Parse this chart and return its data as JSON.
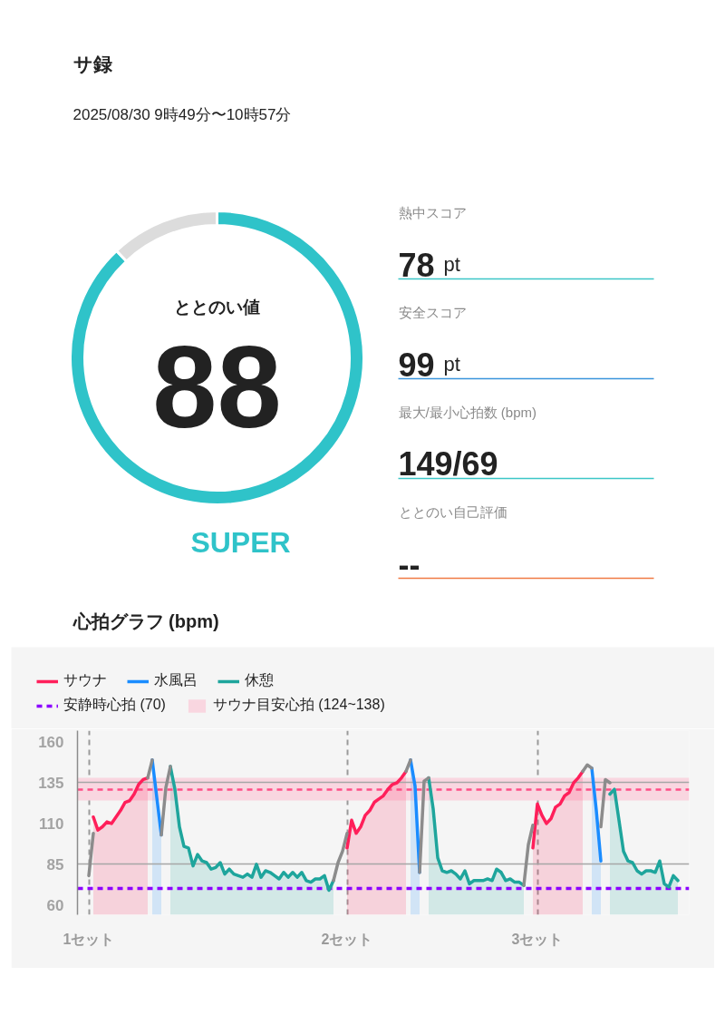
{
  "chart_data": [
    {
      "type": "donut",
      "title": "サ録",
      "subtitle": "2025/08/30 9時49分〜10時57分",
      "categories": [
        "ととのい値",
        null
      ],
      "values": [
        88,
        12
      ],
      "colors": [
        "#2fc3c9",
        "#dcdcdc"
      ],
      "value_labels": [
        "88",
        null
      ],
      "annotations": [
        "SUPER"
      ]
    },
    {
      "type": "other",
      "annotations": [
        "熱中スコア",
        "78 pt",
        "安全スコア",
        "99 pt",
        "最大/最小心拍数 (bpm)",
        "149/69",
        "ととのい自己評価",
        "--"
      ],
      "colors": [
        "#3cc6c8",
        "#3a95dc",
        "#3cc6c8",
        "#f07a45"
      ]
    },
    {
      "type": "area",
      "title": "心拍グラフ (bpm)",
      "categories": [
        null,
        null,
        "1セット",
        null,
        null,
        null,
        null,
        null,
        null,
        null,
        null,
        null,
        null,
        null,
        null,
        null,
        null,
        null,
        null,
        null,
        null,
        null,
        null,
        null,
        null,
        null,
        null,
        null,
        null,
        null,
        null,
        null,
        null,
        null,
        null,
        null,
        null,
        null,
        null,
        null,
        null,
        null,
        null,
        null,
        null,
        null,
        null,
        null,
        null,
        null,
        null,
        null,
        null,
        null,
        null,
        null,
        null,
        null,
        null,
        "2セット",
        null,
        null,
        null,
        null,
        null,
        null,
        null,
        null,
        null,
        null,
        null,
        null,
        null,
        null,
        null,
        null,
        null,
        null,
        null,
        null,
        null,
        null,
        null,
        null,
        null,
        null,
        null,
        null,
        null,
        null,
        null,
        null,
        null,
        null,
        null,
        null,
        null,
        null,
        null,
        null,
        null,
        "3セット",
        null,
        null,
        null,
        null,
        null,
        null,
        null,
        null,
        null,
        null,
        null,
        null,
        null,
        null,
        null,
        null,
        null,
        null,
        null,
        null,
        null,
        null,
        null,
        null,
        null,
        null,
        null,
        null,
        null,
        null,
        null,
        null,
        null
      ],
      "series": [
        {
          "name": "サウナ",
          "color": "#ff1f5a",
          "type": "area",
          "values": [
            null,
            null,
            null,
            114,
            106,
            108,
            111,
            110,
            114,
            118,
            123,
            124,
            128,
            134,
            137,
            138,
            null,
            null,
            null,
            null,
            null,
            null,
            null,
            null,
            null,
            null,
            null,
            null,
            null,
            null,
            null,
            null,
            null,
            null,
            null,
            null,
            null,
            null,
            null,
            null,
            null,
            null,
            null,
            null,
            null,
            null,
            null,
            null,
            null,
            null,
            null,
            null,
            null,
            null,
            null,
            null,
            null,
            null,
            null,
            95,
            112,
            104,
            108,
            115,
            118,
            123,
            125,
            127,
            131,
            134,
            135,
            138,
            142,
            null,
            null,
            null,
            null,
            null,
            null,
            null,
            null,
            null,
            null,
            null,
            null,
            null,
            null,
            null,
            null,
            null,
            null,
            null,
            null,
            null,
            null,
            null,
            null,
            null,
            null,
            null,
            95,
            122,
            115,
            110,
            113,
            120,
            122,
            127,
            129,
            135,
            138,
            142,
            null,
            null,
            null,
            null,
            null,
            null,
            null,
            null,
            null,
            null,
            null,
            null,
            null,
            null,
            null,
            null,
            null,
            null,
            null,
            null,
            null,
            null,
            null
          ]
        },
        {
          "name": "水風呂",
          "color": "#1a8cff",
          "type": "area",
          "values": [
            null,
            null,
            null,
            null,
            null,
            null,
            null,
            null,
            null,
            null,
            null,
            null,
            null,
            null,
            null,
            null,
            149,
            126,
            103,
            null,
            null,
            null,
            null,
            null,
            null,
            null,
            null,
            null,
            null,
            null,
            null,
            null,
            null,
            null,
            null,
            null,
            null,
            null,
            null,
            null,
            null,
            null,
            null,
            null,
            null,
            null,
            null,
            null,
            null,
            null,
            null,
            null,
            null,
            null,
            null,
            null,
            null,
            null,
            null,
            null,
            null,
            null,
            null,
            null,
            null,
            null,
            null,
            null,
            null,
            null,
            null,
            null,
            null,
            149,
            133,
            80,
            null,
            null,
            null,
            null,
            null,
            null,
            null,
            null,
            null,
            null,
            null,
            null,
            null,
            null,
            null,
            null,
            null,
            null,
            null,
            null,
            null,
            null,
            null,
            null,
            null,
            null,
            null,
            null,
            null,
            null,
            null,
            null,
            null,
            null,
            null,
            null,
            null,
            144,
            118,
            87,
            null,
            null,
            null,
            null,
            null,
            null,
            null,
            null,
            null,
            null,
            null,
            null,
            null,
            null,
            null,
            null,
            null,
            null,
            null
          ]
        },
        {
          "name": "休憩",
          "color": "#1ea59c",
          "type": "area",
          "values": [
            null,
            null,
            null,
            null,
            null,
            null,
            null,
            null,
            null,
            null,
            null,
            null,
            null,
            null,
            null,
            null,
            null,
            null,
            null,
            null,
            145,
            131,
            108,
            96,
            95,
            84,
            91,
            87,
            86,
            82,
            83,
            86,
            79,
            82,
            79,
            78,
            77,
            79,
            77,
            85,
            77,
            81,
            80,
            78,
            76,
            80,
            77,
            80,
            77,
            80,
            75,
            74,
            76,
            76,
            78,
            69,
            75,
            null,
            null,
            null,
            null,
            null,
            null,
            null,
            null,
            null,
            null,
            null,
            null,
            null,
            null,
            null,
            null,
            null,
            null,
            null,
            null,
            138,
            119,
            89,
            81,
            80,
            81,
            79,
            76,
            81,
            73,
            75,
            75,
            75,
            76,
            75,
            82,
            80,
            75,
            76,
            74,
            74,
            72,
            null,
            null,
            null,
            null,
            null,
            null,
            null,
            null,
            null,
            null,
            null,
            null,
            null,
            null,
            null,
            null,
            null,
            null,
            128,
            131,
            112,
            93,
            87,
            86,
            81,
            79,
            81,
            81,
            80,
            87,
            73,
            71,
            78,
            75,
            null,
            null
          ]
        },
        {
          "color": "#8c8c8c",
          "type": "line",
          "values": [
            null,
            null,
            78,
            104,
            null,
            null,
            null,
            null,
            null,
            null,
            null,
            null,
            null,
            null,
            null,
            138,
            149,
            null,
            null,
            null,
            null,
            null,
            null,
            null,
            null,
            null,
            null,
            null,
            null,
            null,
            null,
            null,
            null,
            null,
            null,
            null,
            null,
            null,
            null,
            null,
            null,
            null,
            null,
            null,
            null,
            null,
            null,
            null,
            null,
            null,
            null,
            null,
            null,
            null,
            null,
            null,
            75,
            86,
            93,
            104,
            null,
            null,
            null,
            null,
            null,
            null,
            null,
            null,
            null,
            null,
            null,
            null,
            142,
            149,
            null,
            null,
            null,
            null,
            null,
            null,
            null,
            null,
            null,
            null,
            null,
            null,
            null,
            null,
            null,
            null,
            null,
            null,
            null,
            null,
            null,
            null,
            null,
            null,
            72,
            97,
            109,
            null,
            null,
            null,
            null,
            null,
            null,
            null,
            null,
            null,
            null,
            142,
            146,
            144,
            null,
            null,
            null,
            null,
            null,
            null,
            null,
            null,
            null,
            null,
            null,
            null,
            null,
            null,
            null,
            null,
            null,
            null,
            null,
            null,
            null
          ]
        },
        {
          "color": "#8c8c8c",
          "type": "line",
          "values": [
            null,
            null,
            null,
            null,
            null,
            null,
            null,
            null,
            null,
            null,
            null,
            null,
            null,
            null,
            null,
            null,
            null,
            null,
            103,
            132,
            145,
            null,
            null,
            null,
            null,
            null,
            null,
            null,
            null,
            null,
            null,
            null,
            null,
            null,
            null,
            null,
            null,
            null,
            null,
            null,
            null,
            null,
            null,
            null,
            null,
            null,
            null,
            null,
            null,
            null,
            null,
            null,
            null,
            null,
            null,
            null,
            null,
            null,
            null,
            null,
            null,
            null,
            null,
            null,
            null,
            null,
            null,
            null,
            null,
            null,
            null,
            null,
            null,
            null,
            null,
            80,
            136,
            138,
            null,
            null,
            null,
            null,
            null,
            null,
            null,
            null,
            null,
            null,
            null,
            null,
            null,
            null,
            null,
            null,
            null,
            null,
            null,
            null,
            null,
            null,
            null,
            null,
            null,
            null,
            null,
            null,
            null,
            null,
            null,
            null,
            null,
            null,
            null,
            null,
            null,
            108,
            137,
            135,
            null,
            null,
            null,
            null,
            null,
            null,
            null,
            null,
            null,
            null,
            null,
            null,
            null,
            null,
            null,
            null,
            null
          ]
        }
      ],
      "ylim": [
        54,
        167
      ],
      "yticks": [
        60,
        85,
        110,
        135,
        160
      ],
      "legend": "top",
      "grid": "x",
      "ref_lines": [
        {
          "axis": "y",
          "value": 85,
          "color": "#a6a6a6",
          "line_style": "solid"
        },
        {
          "axis": "y",
          "value": 135,
          "color": "#a6a6a6",
          "line_style": "solid"
        },
        {
          "axis": "y",
          "value": 70,
          "label": "安静時心拍 (70)",
          "color": "#8c00ff",
          "line_style": "dashed"
        },
        {
          "axis": "y",
          "value": 131,
          "color": "#ff4d85",
          "line_style": "dashed"
        }
      ],
      "bands": [
        {
          "axis": "y",
          "from": 124,
          "to": 138,
          "label": "サウナ目安心拍 (124~138)",
          "color": "#f9d6e0"
        }
      ]
    }
  ]
}
